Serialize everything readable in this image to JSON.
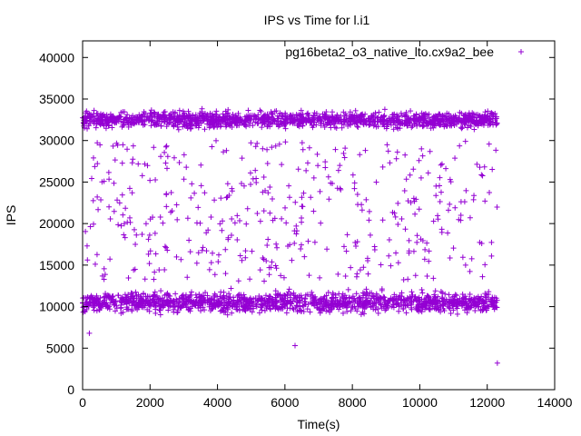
{
  "chart_data": {
    "type": "scatter",
    "title": "IPS vs Time for l.i1",
    "xlabel": "Time(s)",
    "ylabel": "IPS",
    "xlim": [
      0,
      14000
    ],
    "ylim": [
      0,
      42000
    ],
    "xticks": [
      0,
      2000,
      4000,
      6000,
      8000,
      10000,
      12000,
      14000
    ],
    "yticks": [
      0,
      5000,
      10000,
      15000,
      20000,
      25000,
      30000,
      35000,
      40000
    ],
    "grid": false,
    "legend_position": "top-right",
    "marker": "+",
    "color": "#9400d3",
    "series": [
      {
        "name": "pg16beta2_o3_native_lto.cx9a2_bee",
        "description_of_distribution": "",
        "bands": [
          {
            "x_range": [
              0,
              12300
            ],
            "y_center": 32500,
            "y_spread": 1200
          },
          {
            "x_range": [
              0,
              12300
            ],
            "y_center": 10500,
            "y_spread": 1500
          }
        ],
        "outliers": [
          {
            "x": 200,
            "y": 6800
          },
          {
            "x": 6300,
            "y": 5300
          },
          {
            "x": 12300,
            "y": 3200
          }
        ]
      }
    ]
  }
}
